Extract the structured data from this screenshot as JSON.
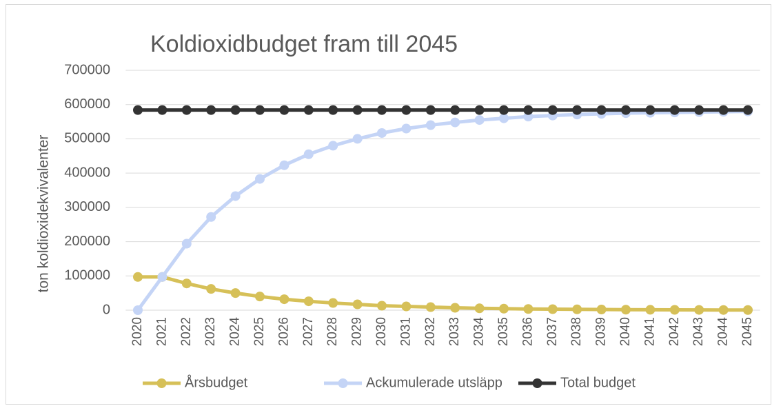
{
  "chart_data": {
    "type": "line",
    "title": "Koldioxidbudget fram till 2045",
    "y_label": "ton koldioxidekvivalenter",
    "categories": [
      "2020",
      "2021",
      "2022",
      "2023",
      "2024",
      "2025",
      "2026",
      "2027",
      "2028",
      "2029",
      "2030",
      "2031",
      "2032",
      "2033",
      "2034",
      "2035",
      "2036",
      "2037",
      "2038",
      "2039",
      "2040",
      "2041",
      "2042",
      "2043",
      "2044",
      "2045"
    ],
    "series": [
      {
        "name": "Årsbudget",
        "color": "#d6c058",
        "values": [
          97000,
          97000,
          78000,
          62000,
          50000,
          40000,
          32000,
          26000,
          21000,
          17000,
          13000,
          11000,
          9000,
          7000,
          5500,
          4500,
          3500,
          3000,
          2400,
          2000,
          1500,
          1200,
          1000,
          800,
          600,
          500
        ]
      },
      {
        "name": "Ackumulerade utsläpp",
        "color": "#c4d4f6",
        "values": [
          0,
          97000,
          194000,
          272000,
          333000,
          383000,
          423000,
          455000,
          480000,
          500000,
          517000,
          530000,
          540000,
          548000,
          555000,
          560000,
          565000,
          568000,
          571000,
          573000,
          575000,
          576000,
          577000,
          578000,
          579000,
          580000
        ]
      },
      {
        "name": "Total budget",
        "color": "#333333",
        "values": [
          584000,
          584000,
          584000,
          584000,
          584000,
          584000,
          584000,
          584000,
          584000,
          584000,
          584000,
          584000,
          584000,
          584000,
          584000,
          584000,
          584000,
          584000,
          584000,
          584000,
          584000,
          584000,
          584000,
          584000,
          584000,
          584000
        ]
      }
    ],
    "ylim": [
      0,
      700000
    ],
    "yticks": [
      0,
      100000,
      200000,
      300000,
      400000,
      500000,
      600000,
      700000
    ],
    "grid": true,
    "legend": "bottom"
  }
}
